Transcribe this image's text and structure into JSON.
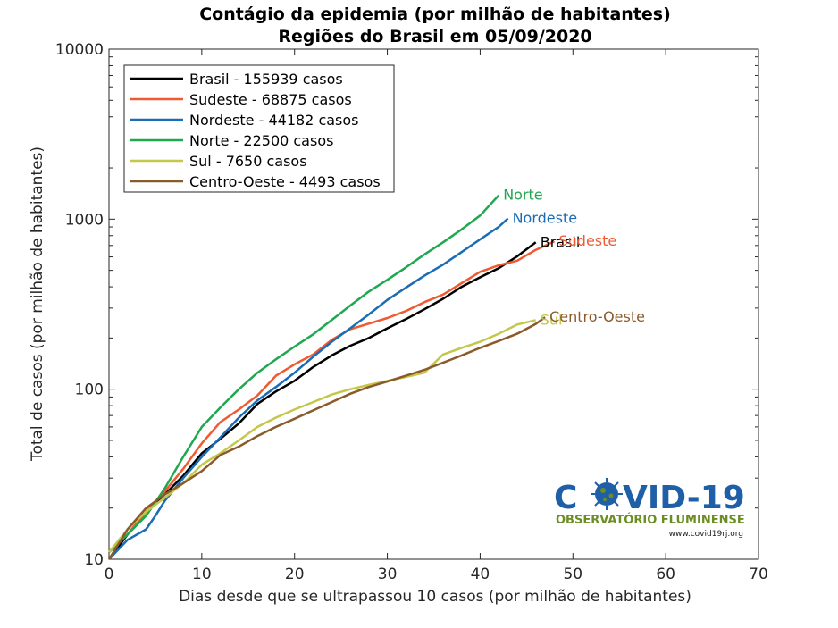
{
  "chart_data": {
    "type": "line",
    "title_lines": [
      "Contágio da epidemia (por milhão de habitantes)",
      "Regiões do Brasil em 05/09/2020"
    ],
    "xlabel": "Dias desde que se ultrapassou 10 casos (por milhão de habitantes)",
    "ylabel": "Total de casos (por milhão de habitantes)",
    "xlim": [
      0,
      70
    ],
    "ylim": [
      10,
      10000
    ],
    "yscale": "log",
    "x_ticks": [
      0,
      10,
      20,
      30,
      40,
      50,
      60,
      70
    ],
    "x_tick_labels": [
      "0",
      "10",
      "20",
      "30",
      "40",
      "50",
      "60",
      "70"
    ],
    "y_ticks": [
      10,
      100,
      1000,
      10000
    ],
    "y_tick_labels": [
      "10",
      "100",
      "1000",
      "10000"
    ],
    "grid": false,
    "legend_position": "top-left",
    "series": [
      {
        "name": "Brasil - 155939 casos",
        "end_label": "Brasil",
        "color": "#000000",
        "points": [
          [
            0,
            10
          ],
          [
            2,
            14
          ],
          [
            4,
            19
          ],
          [
            6,
            24
          ],
          [
            8,
            31
          ],
          [
            10,
            42
          ],
          [
            12,
            51
          ],
          [
            14,
            63
          ],
          [
            16,
            82
          ],
          [
            18,
            97
          ],
          [
            20,
            112
          ],
          [
            22,
            135
          ],
          [
            24,
            158
          ],
          [
            26,
            180
          ],
          [
            28,
            200
          ],
          [
            30,
            228
          ],
          [
            32,
            258
          ],
          [
            34,
            295
          ],
          [
            36,
            340
          ],
          [
            38,
            400
          ],
          [
            40,
            455
          ],
          [
            42,
            515
          ],
          [
            44,
            605
          ],
          [
            46,
            730
          ]
        ]
      },
      {
        "name": "Sudeste - 68875 casos",
        "end_label": "Sudeste",
        "color": "#f05a32",
        "points": [
          [
            0,
            11
          ],
          [
            2,
            14
          ],
          [
            4,
            19
          ],
          [
            6,
            25
          ],
          [
            8,
            34
          ],
          [
            10,
            48
          ],
          [
            12,
            64
          ],
          [
            14,
            76
          ],
          [
            16,
            92
          ],
          [
            18,
            120
          ],
          [
            20,
            140
          ],
          [
            22,
            160
          ],
          [
            24,
            195
          ],
          [
            26,
            225
          ],
          [
            28,
            243
          ],
          [
            30,
            262
          ],
          [
            32,
            288
          ],
          [
            34,
            325
          ],
          [
            36,
            360
          ],
          [
            38,
            420
          ],
          [
            40,
            490
          ],
          [
            42,
            535
          ],
          [
            44,
            570
          ],
          [
            46,
            660
          ],
          [
            48,
            740
          ]
        ]
      },
      {
        "name": "Nordeste - 44182 casos",
        "end_label": "Nordeste",
        "color": "#1a6cb5",
        "points": [
          [
            0,
            10
          ],
          [
            2,
            13
          ],
          [
            4,
            15
          ],
          [
            5,
            18
          ],
          [
            6,
            22
          ],
          [
            8,
            30
          ],
          [
            10,
            40
          ],
          [
            12,
            52
          ],
          [
            14,
            68
          ],
          [
            16,
            86
          ],
          [
            18,
            103
          ],
          [
            20,
            125
          ],
          [
            22,
            155
          ],
          [
            24,
            190
          ],
          [
            26,
            228
          ],
          [
            28,
            275
          ],
          [
            30,
            335
          ],
          [
            32,
            395
          ],
          [
            34,
            465
          ],
          [
            36,
            540
          ],
          [
            38,
            640
          ],
          [
            40,
            760
          ],
          [
            42,
            900
          ],
          [
            43,
            1010
          ]
        ]
      },
      {
        "name": "Norte - 22500 casos",
        "end_label": "Norte",
        "color": "#1fa84f",
        "points": [
          [
            0,
            11
          ],
          [
            2,
            14
          ],
          [
            4,
            18
          ],
          [
            6,
            26
          ],
          [
            8,
            40
          ],
          [
            10,
            60
          ],
          [
            12,
            78
          ],
          [
            14,
            100
          ],
          [
            16,
            125
          ],
          [
            18,
            150
          ],
          [
            20,
            178
          ],
          [
            22,
            210
          ],
          [
            24,
            255
          ],
          [
            26,
            310
          ],
          [
            28,
            375
          ],
          [
            30,
            440
          ],
          [
            32,
            520
          ],
          [
            34,
            620
          ],
          [
            36,
            730
          ],
          [
            38,
            870
          ],
          [
            40,
            1050
          ],
          [
            42,
            1380
          ]
        ]
      },
      {
        "name": "Sul - 7650 casos",
        "end_label": "Sul",
        "color": "#c4c84a",
        "points": [
          [
            0,
            11
          ],
          [
            2,
            15
          ],
          [
            4,
            19
          ],
          [
            6,
            23
          ],
          [
            8,
            28
          ],
          [
            10,
            36
          ],
          [
            12,
            42
          ],
          [
            14,
            50
          ],
          [
            16,
            60
          ],
          [
            18,
            68
          ],
          [
            20,
            76
          ],
          [
            22,
            84
          ],
          [
            24,
            93
          ],
          [
            26,
            100
          ],
          [
            28,
            106
          ],
          [
            30,
            112
          ],
          [
            32,
            118
          ],
          [
            34,
            125
          ],
          [
            36,
            160
          ],
          [
            38,
            175
          ],
          [
            40,
            190
          ],
          [
            42,
            212
          ],
          [
            44,
            240
          ],
          [
            46,
            255
          ]
        ]
      },
      {
        "name": "Centro-Oeste - 4493 casos",
        "end_label": "Centro-Oeste",
        "color": "#8a5a2b",
        "points": [
          [
            0,
            10
          ],
          [
            2,
            15
          ],
          [
            4,
            20
          ],
          [
            6,
            24
          ],
          [
            8,
            28
          ],
          [
            10,
            33
          ],
          [
            12,
            41
          ],
          [
            14,
            46
          ],
          [
            16,
            53
          ],
          [
            18,
            60
          ],
          [
            20,
            67
          ],
          [
            22,
            75
          ],
          [
            24,
            84
          ],
          [
            26,
            94
          ],
          [
            28,
            103
          ],
          [
            30,
            111
          ],
          [
            32,
            120
          ],
          [
            34,
            130
          ],
          [
            36,
            143
          ],
          [
            38,
            158
          ],
          [
            40,
            175
          ],
          [
            42,
            192
          ],
          [
            44,
            212
          ],
          [
            46,
            242
          ],
          [
            47,
            265
          ]
        ]
      }
    ]
  },
  "logo": {
    "main_left": "C",
    "main_right": "VID-19",
    "subtitle": "OBSERVATÓRIO FLUMINENSE",
    "url": "www.covid19rj.org",
    "colors": {
      "blue": "#1f5fa8",
      "green": "#6b8e23"
    }
  }
}
